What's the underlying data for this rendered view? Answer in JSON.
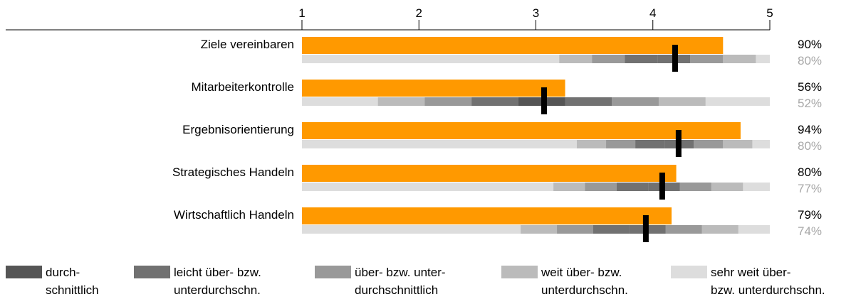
{
  "chart_data": {
    "type": "bar",
    "xlim": [
      1,
      5
    ],
    "ticks": [
      "1",
      "2",
      "3",
      "4",
      "5"
    ],
    "categories": [
      "Ziele vereinbaren",
      "Mitarbeiterkontrolle",
      "Ergebnisorientierung",
      "Strategisches Handeln",
      "Wirtschaftlich Handeln"
    ],
    "series": [
      {
        "values": [
          4.6,
          3.25,
          4.75,
          4.2,
          4.16
        ]
      }
    ],
    "marker_values": [
      4.19,
      3.07,
      4.22,
      4.08,
      3.94
    ],
    "percent_main": [
      "90%",
      "56%",
      "94%",
      "80%",
      "79%"
    ],
    "percent_ref": [
      "80%",
      "52%",
      "80%",
      "77%",
      "74%"
    ],
    "range_bands": [
      [
        3.2,
        3.48,
        3.76,
        4.04,
        4.32,
        4.6,
        4.88
      ],
      [
        1.65,
        2.05,
        2.45,
        2.85,
        3.25,
        3.65,
        4.05,
        4.45
      ],
      [
        3.35,
        3.6,
        3.85,
        4.1,
        4.35,
        4.6,
        4.85
      ],
      [
        3.15,
        3.42,
        3.69,
        3.96,
        4.23,
        4.5,
        4.77
      ],
      [
        2.87,
        3.18,
        3.49,
        3.8,
        4.11,
        4.42,
        4.73
      ]
    ],
    "colors": {
      "bar": "#ff9900",
      "marker": "#000000",
      "levels": [
        "#555555",
        "#717171",
        "#999999",
        "#bbbbbb",
        "#dddddd"
      ]
    },
    "legend": [
      {
        "line1": "durch-",
        "line2": "schnittlich"
      },
      {
        "line1": "leicht über- bzw.",
        "line2": "unterdurchschn."
      },
      {
        "line1": "über- bzw. unter-",
        "line2": "durchschnittlich"
      },
      {
        "line1": "weit über- bzw.",
        "line2": "unterdurchschn."
      },
      {
        "line1": "sehr weit über-",
        "line2": "bzw. unterdurchschn."
      }
    ]
  }
}
